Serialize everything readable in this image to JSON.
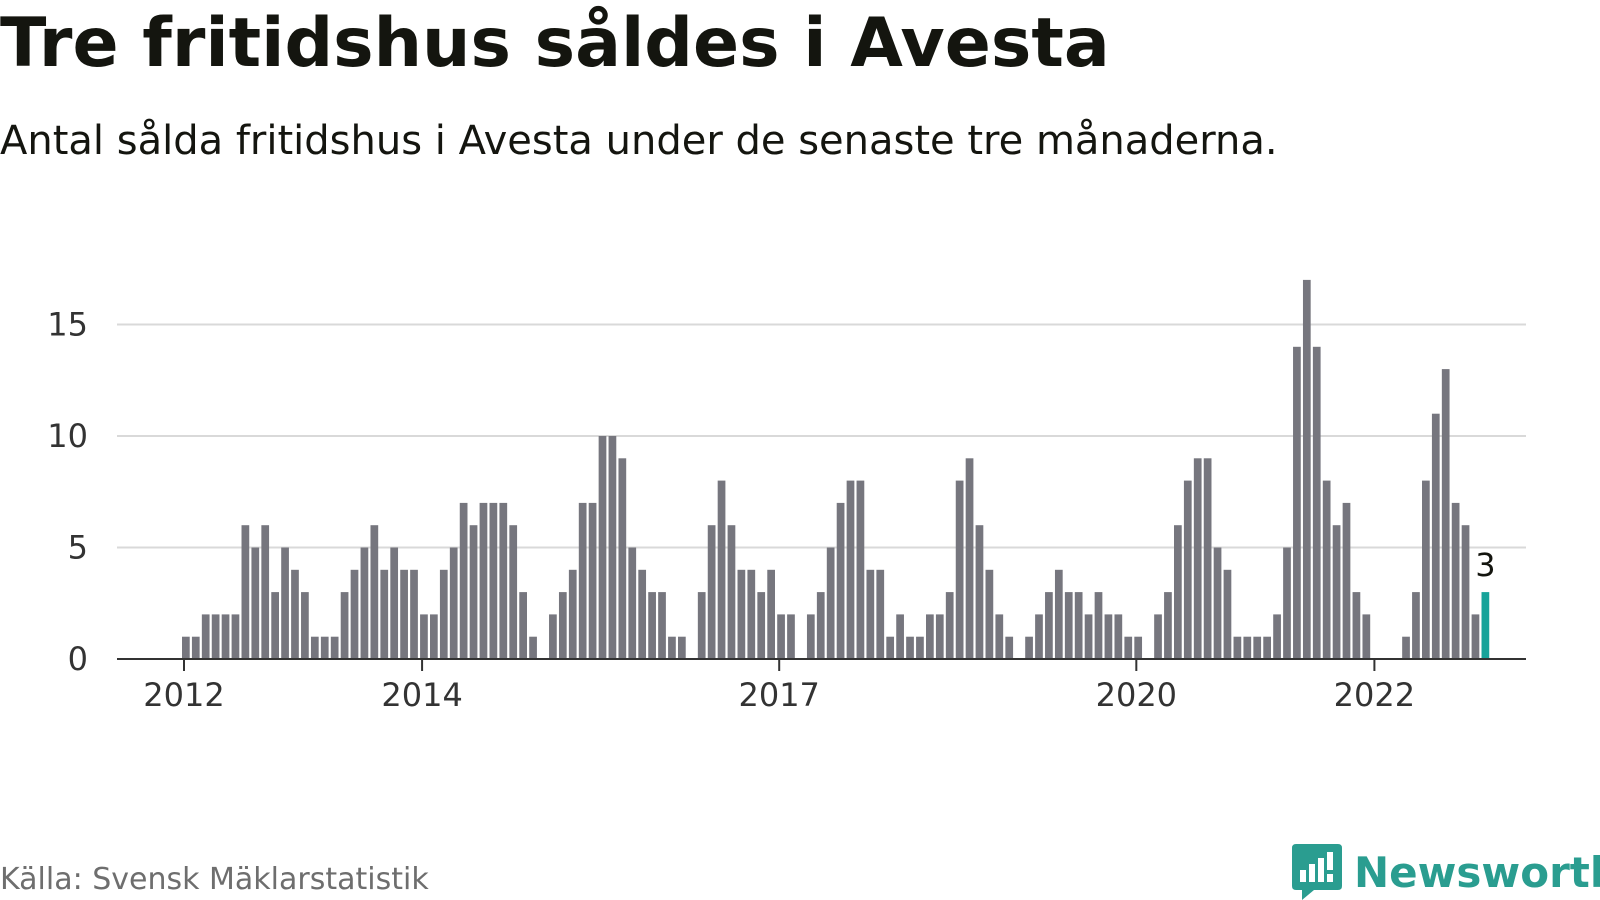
{
  "header": {
    "title": "Tre fritidshus såldes i Avesta",
    "subtitle": "Antal sålda fritidshus i Avesta under de senaste tre månaderna."
  },
  "footer": {
    "source": "Källa: Svensk Mäklarstatistik",
    "brand": "Newsworthy"
  },
  "colors": {
    "bar": "#76767e",
    "highlight": "#17a39a",
    "grid": "#d9d9d9",
    "axis": "#333333",
    "brand": "#2a9d90"
  },
  "icons": {
    "logo": "bar-chart-speech-bubble-icon"
  },
  "chart_data": {
    "type": "bar",
    "title": "Tre fritidshus såldes i Avesta",
    "subtitle": "Antal sålda fritidshus i Avesta under de senaste tre månaderna.",
    "xlabel": "",
    "ylabel": "",
    "ylim": [
      0,
      17
    ],
    "yticks": [
      0,
      5,
      10,
      15
    ],
    "grid": true,
    "legend": "none",
    "start_month": "2012-01",
    "xticks": [
      {
        "label": "2012",
        "month": "2012-01"
      },
      {
        "label": "2014",
        "month": "2014-01"
      },
      {
        "label": "2017",
        "month": "2017-01"
      },
      {
        "label": "2020",
        "month": "2020-01"
      },
      {
        "label": "2022",
        "month": "2022-01"
      }
    ],
    "values": [
      1,
      1,
      2,
      2,
      2,
      2,
      6,
      5,
      6,
      3,
      5,
      4,
      3,
      1,
      1,
      1,
      3,
      4,
      5,
      6,
      4,
      5,
      4,
      4,
      2,
      2,
      4,
      5,
      7,
      6,
      7,
      7,
      7,
      6,
      3,
      1,
      0,
      2,
      3,
      4,
      7,
      7,
      10,
      10,
      9,
      5,
      4,
      3,
      3,
      1,
      1,
      0,
      3,
      6,
      8,
      6,
      4,
      4,
      3,
      4,
      2,
      2,
      0,
      2,
      3,
      5,
      7,
      8,
      8,
      4,
      4,
      1,
      2,
      1,
      1,
      2,
      2,
      3,
      8,
      9,
      6,
      4,
      2,
      1,
      0,
      1,
      2,
      3,
      4,
      3,
      3,
      2,
      3,
      2,
      2,
      1,
      1,
      0,
      2,
      3,
      6,
      8,
      9,
      9,
      5,
      4,
      1,
      1,
      1,
      1,
      2,
      5,
      14,
      17,
      14,
      8,
      6,
      7,
      3,
      2,
      0,
      0,
      0,
      1,
      3,
      8,
      11,
      13,
      7,
      6,
      2,
      3
    ],
    "highlight_last": true,
    "last_label": "3"
  }
}
